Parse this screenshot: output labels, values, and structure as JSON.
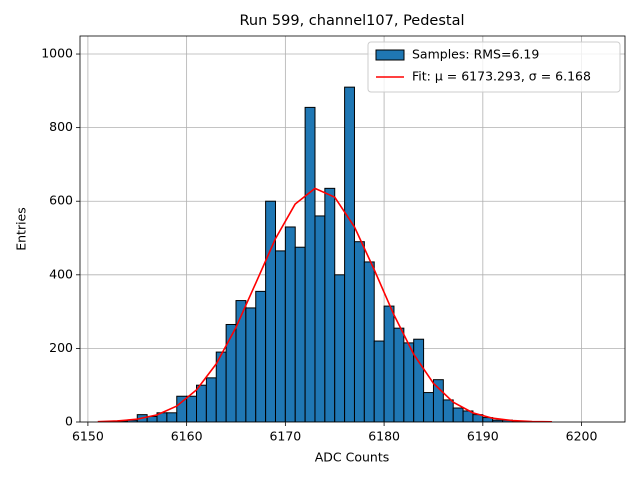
{
  "chart_data": {
    "type": "histogram",
    "title": "Run 599, channel107, Pedestal",
    "xlabel": "ADC Counts",
    "ylabel": "Entries",
    "bins": [
      6151,
      6152,
      6153,
      6154,
      6155,
      6156,
      6157,
      6158,
      6159,
      6160,
      6161,
      6162,
      6163,
      6164,
      6165,
      6166,
      6167,
      6168,
      6169,
      6170,
      6171,
      6172,
      6173,
      6174,
      6175,
      6176,
      6177,
      6178,
      6179,
      6180,
      6181,
      6182,
      6183,
      6184,
      6185,
      6186,
      6187,
      6188,
      6189,
      6190,
      6191,
      6192,
      6193,
      6194,
      6195,
      6196,
      6197
    ],
    "series": [
      {
        "name": "Samples: RMS=6.19",
        "color": "#1f77b4",
        "edgecolor": "#000000",
        "values": [
          0,
          1,
          3,
          5,
          20,
          15,
          25,
          25,
          70,
          70,
          100,
          120,
          190,
          265,
          330,
          310,
          355,
          600,
          465,
          530,
          475,
          855,
          560,
          635,
          400,
          910,
          490,
          435,
          220,
          315,
          255,
          215,
          225,
          80,
          115,
          60,
          38,
          30,
          20,
          12,
          5,
          5,
          2,
          1,
          1,
          0
        ]
      },
      {
        "name": "Fit: μ = 6173.293, σ = 6.168",
        "color": "#ff0000",
        "type": "line",
        "x": [
          6151,
          6153,
          6155,
          6157,
          6159,
          6161,
          6163,
          6165,
          6167,
          6169,
          6171,
          6173,
          6175,
          6177,
          6179,
          6181,
          6183,
          6185,
          6187,
          6189,
          6191,
          6193,
          6195,
          6197
        ],
        "values": [
          0.9,
          2.8,
          7.8,
          19.4,
          43.3,
          87.2,
          157.9,
          257.2,
          377.3,
          498.4,
          592.6,
          634.9,
          611,
          530,
          414,
          291,
          184,
          105,
          53.8,
          24.8,
          10.3,
          3.9,
          1.3,
          0.4
        ]
      }
    ],
    "xlim": [
      6149.2,
      6204.4
    ],
    "ylim": [
      0,
      1049
    ],
    "xticks": [
      6150,
      6160,
      6170,
      6180,
      6190,
      6200
    ],
    "yticks": [
      0,
      200,
      400,
      600,
      800,
      1000
    ],
    "grid": true,
    "legend": "upper right"
  }
}
